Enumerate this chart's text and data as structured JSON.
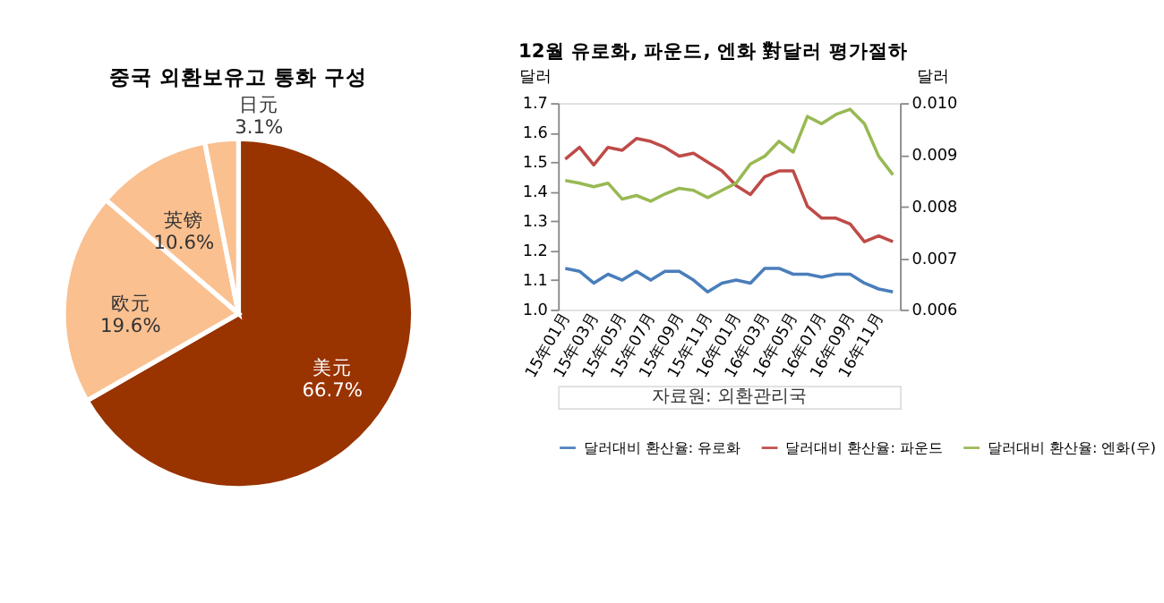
{
  "chart_data": [
    {
      "type": "pie",
      "title": "중국 외환보유고 통화 구성",
      "categories": [
        "美元",
        "欧元",
        "英镑",
        "日元"
      ],
      "values": [
        66.7,
        19.6,
        10.6,
        3.1
      ],
      "value_labels": [
        "66.7%",
        "19.6%",
        "10.6%",
        "3.1%"
      ],
      "colors": [
        "#993300",
        "#fac090",
        "#fac090",
        "#fac090"
      ],
      "legend": false
    },
    {
      "type": "line",
      "title": "12월 유로화, 파운드, 엔화 對달러 평가절하",
      "ylabel": "달러",
      "y2label": "달러",
      "categories": [
        "15年01月",
        null,
        "15年03月",
        null,
        "15年05月",
        null,
        "15年07月",
        null,
        "15年09月",
        null,
        "15年11月",
        null,
        "16年01月",
        null,
        "16年03月",
        null,
        "16年05月",
        null,
        "16年07月",
        null,
        "16年09月",
        null,
        "16年11月",
        null
      ],
      "series": [
        {
          "name": "달러대비 환산율: 유로화",
          "color": "#4a7ebb",
          "values": [
            1.14,
            1.13,
            1.09,
            1.12,
            1.1,
            1.13,
            1.1,
            1.13,
            1.13,
            1.1,
            1.06,
            1.09,
            1.1,
            1.09,
            1.14,
            1.14,
            1.12,
            1.12,
            1.11,
            1.12,
            1.12,
            1.09,
            1.07,
            1.06
          ]
        },
        {
          "name": "달러대비 환산율: 파운드",
          "color": "#be4b48",
          "values": [
            1.51,
            1.55,
            1.49,
            1.55,
            1.54,
            1.58,
            1.57,
            1.55,
            1.52,
            1.53,
            1.5,
            1.47,
            1.42,
            1.39,
            1.45,
            1.47,
            1.47,
            1.35,
            1.31,
            1.31,
            1.29,
            1.23,
            1.25,
            1.23
          ]
        },
        {
          "name": "달러대비 환산율: 엔화(우)",
          "color": "#98b954",
          "axis": "y2",
          "values": [
            0.0085,
            0.00845,
            0.00838,
            0.00845,
            0.00814,
            0.00821,
            0.0081,
            0.00824,
            0.00835,
            0.00831,
            0.00817,
            0.00831,
            0.00845,
            0.00882,
            0.00897,
            0.00926,
            0.00905,
            0.00974,
            0.0096,
            0.00978,
            0.00988,
            0.0096,
            0.00897,
            0.00861
          ]
        }
      ],
      "ylim": [
        1.0,
        1.7
      ],
      "yticks": [
        {
          "value": 1.0,
          "label": "1.0"
        },
        1.1,
        1.2,
        1.3,
        1.4,
        1.5,
        1.6,
        1.7
      ],
      "y2lim": [
        0.006,
        0.01
      ],
      "y2ticks": [
        {
          "value": 0.006,
          "label": "0.006"
        },
        0.007,
        0.008,
        0.009,
        {
          "value": 0.01,
          "label": "0.010"
        }
      ],
      "grid": false,
      "legend": "bottom",
      "line_style": "solid",
      "marker": "none",
      "annotations": [
        "자료원: 외환관리국"
      ]
    }
  ]
}
